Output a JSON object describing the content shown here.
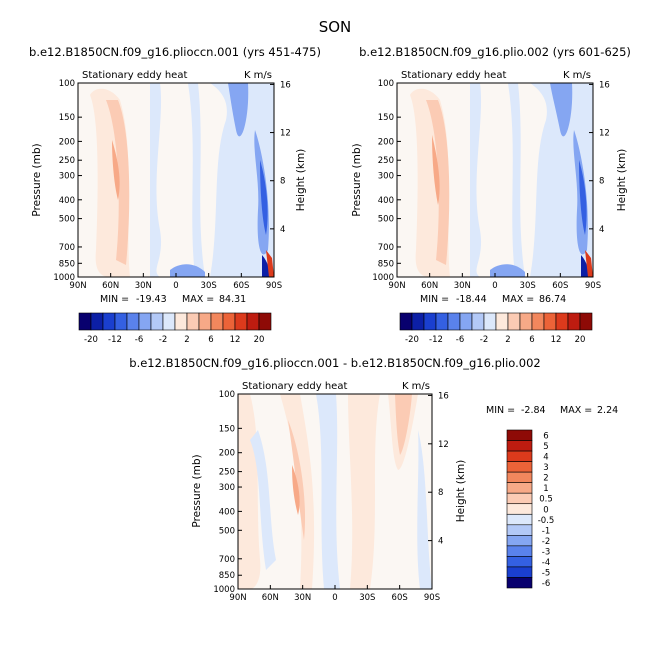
{
  "season": "SON",
  "chart_data": [
    {
      "type": "heatmap",
      "title": "b.e12.B1850CN.f09_g16.plioccn.001 (yrs 451-475)",
      "inner_left": "Stationary eddy heat",
      "inner_right": "K m/s",
      "ylabel": "Pressure (mb)",
      "ylabel_right": "Height (km)",
      "x_ticks": [
        "90N",
        "60N",
        "30N",
        "0",
        "30S",
        "60S",
        "90S"
      ],
      "y_ticks": [
        "100",
        "150",
        "200",
        "250",
        "300",
        "400",
        "500",
        "700",
        "850",
        "1000"
      ],
      "y_ticks_right": [
        "16",
        "12",
        "8",
        "4"
      ],
      "stats_text": {
        "min_label": "MIN =",
        "min": "-19.43",
        "max_label": "MAX =",
        "max": "84.31"
      },
      "contour_levels": [
        -20,
        -18,
        -16,
        -14,
        -12,
        -10,
        -8,
        -6,
        -4,
        -2,
        0,
        2,
        4,
        6,
        8,
        10,
        12,
        14,
        16,
        18,
        20
      ],
      "colorbar_labels": [
        "-20",
        "-12",
        "-6",
        "-2",
        "2",
        "6",
        "12",
        "20"
      ]
    },
    {
      "type": "heatmap",
      "title": "b.e12.B1850CN.f09_g16.plio.002 (yrs 601-625)",
      "inner_left": "Stationary eddy heat",
      "inner_right": "K m/s",
      "ylabel": "Pressure (mb)",
      "ylabel_right": "Height (km)",
      "x_ticks": [
        "90N",
        "60N",
        "30N",
        "0",
        "30S",
        "60S",
        "90S"
      ],
      "y_ticks": [
        "100",
        "150",
        "200",
        "250",
        "300",
        "400",
        "500",
        "700",
        "850",
        "1000"
      ],
      "y_ticks_right": [
        "16",
        "12",
        "8",
        "4"
      ],
      "stats_text": {
        "min_label": "MIN =",
        "min": "-18.44",
        "max_label": "MAX =",
        "max": "86.74"
      },
      "contour_levels": [
        -20,
        -18,
        -16,
        -14,
        -12,
        -10,
        -8,
        -6,
        -4,
        -2,
        0,
        2,
        4,
        6,
        8,
        10,
        12,
        14,
        16,
        18,
        20
      ],
      "colorbar_labels": [
        "-20",
        "-12",
        "-6",
        "-2",
        "2",
        "6",
        "12",
        "20"
      ]
    },
    {
      "type": "heatmap",
      "title": "b.e12.B1850CN.f09_g16.plioccn.001 - b.e12.B1850CN.f09_g16.plio.002",
      "inner_left": "Stationary eddy heat",
      "inner_right": "K m/s",
      "ylabel": "Pressure (mb)",
      "ylabel_right": "Height (km)",
      "x_ticks": [
        "90N",
        "60N",
        "30N",
        "0",
        "30S",
        "60S",
        "90S"
      ],
      "y_ticks": [
        "100",
        "150",
        "200",
        "250",
        "300",
        "400",
        "500",
        "700",
        "850",
        "1000"
      ],
      "y_ticks_right": [
        "16",
        "12",
        "8",
        "4"
      ],
      "stats_text": {
        "min_label": "MIN =",
        "min": "-2.84",
        "max_label": "MAX =",
        "max": "2.24"
      },
      "contour_levels": [
        -6,
        -5,
        -4,
        -3,
        -2,
        -1,
        -0.5,
        0,
        0.5,
        1,
        2,
        3,
        4,
        5,
        6
      ],
      "colorbar_labels": [
        "6",
        "5",
        "4",
        "3",
        "2",
        "1",
        "0.5",
        "0",
        "-0.5",
        "-1",
        "-2",
        "-3",
        "-4",
        "-5",
        "-6"
      ]
    }
  ],
  "colors": {
    "colorbar_20": [
      "#08006e",
      "#0c1fa6",
      "#1a3fcf",
      "#3460e2",
      "#5a82ec",
      "#85a6f2",
      "#b3c9f7",
      "#dce8fb",
      "#fde9dc",
      "#fbcbb4",
      "#f7a987",
      "#f2875d",
      "#ec6338",
      "#dc3a1c",
      "#be1c10",
      "#8e0a06"
    ],
    "colorbar_diff": [
      "#8e0a06",
      "#be1c10",
      "#dc3a1c",
      "#ec6338",
      "#f2875d",
      "#f7a987",
      "#fbcbb4",
      "#fde9dc",
      "#dce8fb",
      "#b3c9f7",
      "#85a6f2",
      "#5a82ec",
      "#3460e2",
      "#1a3fcf",
      "#08006e"
    ]
  }
}
